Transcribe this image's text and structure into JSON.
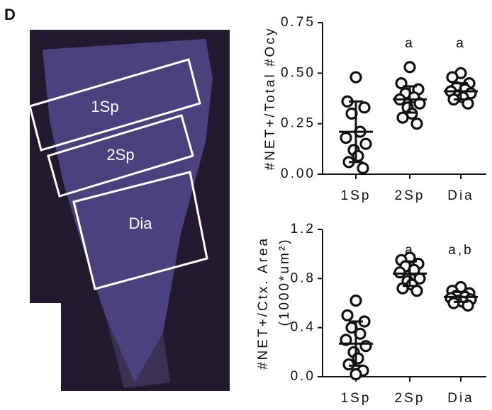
{
  "panel_label": "D",
  "image": {
    "regions": [
      "1Sp",
      "2Sp",
      "Dia"
    ]
  },
  "chart_data": [
    {
      "type": "strip",
      "ylabel": "#NET+/Total #Ocy",
      "categories": [
        "1Sp",
        "2Sp",
        "Dia"
      ],
      "color": "#111111",
      "ylim": [
        0,
        0.75
      ],
      "yticks": [
        {
          "value": 0,
          "label": "0.00"
        },
        0.25,
        {
          "value": 0.5,
          "label": "0.50"
        },
        0.75
      ],
      "groups": [
        {
          "values": [
            0.48,
            0.36,
            0.33,
            0.3,
            0.21,
            0.18,
            0.15,
            0.12,
            0.09,
            0.06,
            0.03
          ],
          "mean": 0.21,
          "sd": 0.15
        },
        {
          "values": [
            0.53,
            0.45,
            0.42,
            0.4,
            0.38,
            0.37,
            0.35,
            0.33,
            0.3,
            0.28,
            0.25
          ],
          "mean": 0.37,
          "sd": 0.065
        },
        {
          "values": [
            0.5,
            0.48,
            0.45,
            0.43,
            0.42,
            0.41,
            0.4,
            0.39,
            0.38,
            0.37,
            0.35
          ],
          "mean": 0.41,
          "sd": 0.04
        }
      ],
      "annotations": [
        null,
        "a",
        "a"
      ]
    },
    {
      "type": "strip",
      "ylabel": "#NET+/Ctx. Area",
      "ylabel2": "(1000*um²)",
      "categories": [
        "1Sp",
        "2Sp",
        "Dia"
      ],
      "color": "#111111",
      "ylim": [
        0,
        1.2
      ],
      "yticks": [
        {
          "value": 0,
          "label": "0.0"
        },
        0.4,
        0.8,
        1.2
      ],
      "groups": [
        {
          "values": [
            0.62,
            0.5,
            0.45,
            0.4,
            0.35,
            0.3,
            0.25,
            0.2,
            0.15,
            0.1,
            0.05,
            0.02
          ],
          "mean": 0.27,
          "sd": 0.18
        },
        {
          "values": [
            0.97,
            0.95,
            0.92,
            0.9,
            0.87,
            0.85,
            0.8,
            0.78,
            0.75,
            0.72,
            0.7
          ],
          "mean": 0.84,
          "sd": 0.1
        },
        {
          "values": [
            0.73,
            0.7,
            0.68,
            0.66,
            0.65,
            0.64,
            0.63,
            0.62,
            0.61,
            0.6,
            0.58
          ],
          "mean": 0.65,
          "sd": 0.04
        }
      ],
      "annotations": [
        null,
        "a",
        "a,b"
      ]
    }
  ]
}
